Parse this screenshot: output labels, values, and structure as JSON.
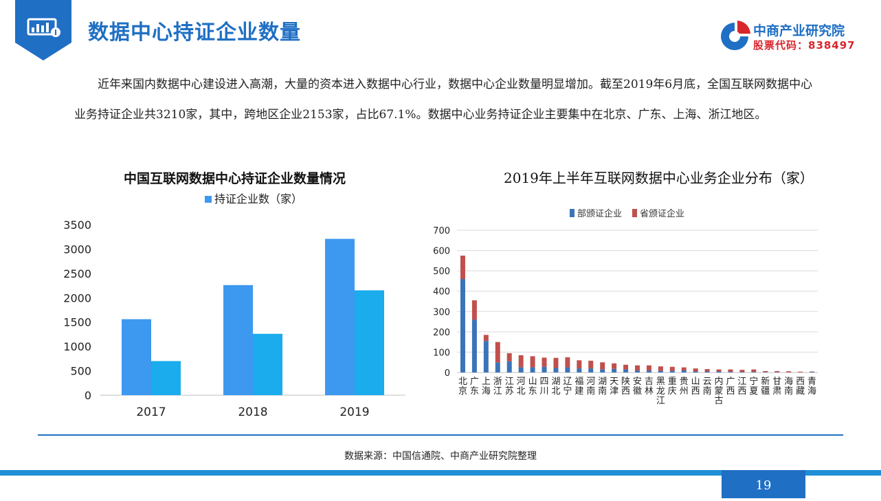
{
  "header": {
    "title": "数据中心持证企业数量",
    "logo_name": "中商产业研究院",
    "logo_code": "股票代码：838497"
  },
  "intro": "近年来国内数据中心建设进入高潮，大量的资本进入数据中心行业，数据中心企业数量明显增加。截至2019年6月底，全国互联网数据中心业务持证企业共3210家，其中，跨地区企业2153家，占比67.1%。数据中心业务持证企业主要集中在北京、广东、上海、浙江地区。",
  "chart_data": [
    {
      "type": "bar",
      "title": "中国互联网数据中心持证企业数量情况",
      "legend_position": "top",
      "categories": [
        "2017",
        "2018",
        "2019"
      ],
      "series": [
        {
          "name": "持证企业数（家）",
          "values": [
            1560,
            2260,
            3210
          ],
          "color": "#3d98ef"
        },
        {
          "values": [
            700,
            1260,
            2153
          ],
          "color": "#1aacec"
        }
      ],
      "ylim": [
        0,
        3500
      ],
      "yticks": [
        "0",
        "500",
        "1000",
        "1500",
        "2000",
        "2500",
        "3000",
        "3500"
      ],
      "grid": false
    },
    {
      "type": "bar",
      "stacked": true,
      "title": "2019年上半年互联网数据中心业务企业分布（家）",
      "legend_position": "top-left",
      "categories": [
        "北京",
        "广东",
        "上海",
        "浙江",
        "江苏",
        "河北",
        "山东",
        "四川",
        "湖北",
        "辽宁",
        "福建",
        "河南",
        "湖南",
        "天津",
        "陕西",
        "安徽",
        "吉林",
        "黑龙江",
        "重庆",
        "贵州",
        "山西",
        "云南",
        "内蒙古",
        "广西",
        "江西",
        "宁夏",
        "新疆",
        "甘肃",
        "海南",
        "西藏",
        "青海"
      ],
      "series": [
        {
          "name": "部颁证企业",
          "color": "#3c73b8",
          "values": [
            460,
            260,
            155,
            50,
            55,
            25,
            25,
            28,
            22,
            25,
            20,
            20,
            15,
            18,
            15,
            10,
            10,
            8,
            8,
            10,
            5,
            5,
            5,
            3,
            3,
            3,
            2,
            2,
            1,
            1,
            3
          ]
        },
        {
          "name": "省颁证企业",
          "color": "#c0504d",
          "values": [
            115,
            95,
            30,
            100,
            40,
            60,
            55,
            45,
            50,
            50,
            40,
            38,
            35,
            27,
            23,
            25,
            25,
            22,
            20,
            15,
            15,
            12,
            10,
            12,
            10,
            12,
            5,
            5,
            5,
            3,
            2
          ]
        }
      ],
      "ylim": [
        0,
        700
      ],
      "yticks": [
        "0",
        "100",
        "200",
        "300",
        "400",
        "500",
        "600",
        "700"
      ],
      "grid": true
    }
  ],
  "source": "数据来源：中国信通院、中商产业研究院整理",
  "page_number": "19",
  "colors": {
    "brand_blue": "#1f6fc4",
    "brand_red": "#d8262d",
    "accent_bar": "#1f8fd6"
  }
}
